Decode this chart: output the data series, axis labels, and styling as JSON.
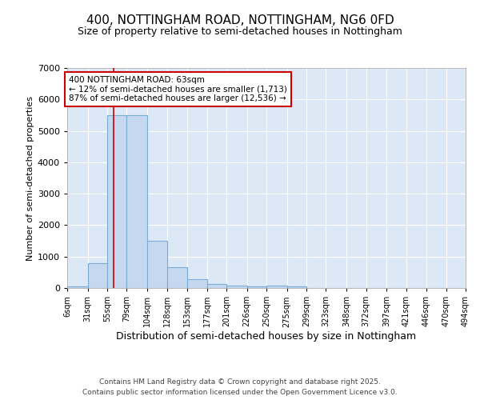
{
  "title1": "400, NOTTINGHAM ROAD, NOTTINGHAM, NG6 0FD",
  "title2": "Size of property relative to semi-detached houses in Nottingham",
  "xlabel": "Distribution of semi-detached houses by size in Nottingham",
  "ylabel": "Number of semi-detached properties",
  "bin_labels": [
    "6sqm",
    "31sqm",
    "55sqm",
    "79sqm",
    "104sqm",
    "128sqm",
    "153sqm",
    "177sqm",
    "201sqm",
    "226sqm",
    "250sqm",
    "275sqm",
    "299sqm",
    "323sqm",
    "348sqm",
    "372sqm",
    "397sqm",
    "421sqm",
    "446sqm",
    "470sqm",
    "494sqm"
  ],
  "bin_edges": [
    6,
    31,
    55,
    79,
    104,
    128,
    153,
    177,
    201,
    226,
    250,
    275,
    299,
    323,
    348,
    372,
    397,
    421,
    446,
    470,
    494
  ],
  "bar_heights": [
    50,
    800,
    5500,
    5500,
    1500,
    650,
    270,
    140,
    70,
    50,
    70,
    50,
    10,
    2,
    1,
    0,
    0,
    0,
    0,
    0,
    0
  ],
  "bar_color": "#c5d8f0",
  "bar_edge_color": "#7aadd4",
  "background_color": "#dce8f5",
  "grid_color": "#ffffff",
  "red_line_x": 63,
  "annotation_text": "400 NOTTINGHAM ROAD: 63sqm\n← 12% of semi-detached houses are smaller (1,713)\n87% of semi-detached houses are larger (12,536) →",
  "annotation_box_color": "#ffffff",
  "annotation_box_edge": "#cc0000",
  "footer1": "Contains HM Land Registry data © Crown copyright and database right 2025.",
  "footer2": "Contains public sector information licensed under the Open Government Licence v3.0.",
  "ylim": [
    0,
    7000
  ],
  "yticks": [
    0,
    1000,
    2000,
    3000,
    4000,
    5000,
    6000,
    7000
  ]
}
